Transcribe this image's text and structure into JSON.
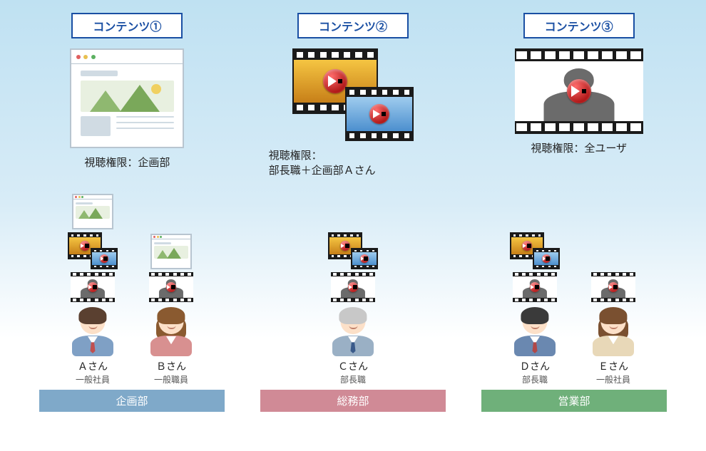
{
  "background_gradient": [
    "#bfe1f2",
    "#ffffff"
  ],
  "contents": [
    {
      "label": "コンテンツ①",
      "label_color": "#1a4fa3",
      "permission": "視聴権限：企画部",
      "icon": "browser"
    },
    {
      "label": "コンテンツ②",
      "label_color": "#1a4fa3",
      "permission": "視聴権限：\n部長職＋企画部Ａさん",
      "icon": "clips"
    },
    {
      "label": "コンテンツ③",
      "label_color": "#1a4fa3",
      "permission": "視聴権限：全ユーザ",
      "icon": "silhouette"
    }
  ],
  "browser_dots": [
    "#e06060",
    "#e8c050",
    "#5cb060"
  ],
  "clip_colors": {
    "gold_top": "#f5c542",
    "gold_bot": "#c77f18",
    "blue_top": "#9fccee",
    "blue_bot": "#4c8fce"
  },
  "play_button": {
    "grad_light": "#ff6b6b",
    "grad_dark": "#b01818",
    "triangle": "#ffffff"
  },
  "silhouette_color": "#6b6b6b",
  "departments": [
    {
      "name": "企画部",
      "bar_color": "#7fa9c9",
      "people": [
        {
          "name": "Ａさん",
          "role": "一般社員",
          "suit": "#7fa0c5",
          "hair": "#5a4030",
          "tie": "#c05050",
          "access": [
            "browser",
            "clips",
            "silhouette"
          ]
        },
        {
          "name": "Ｂさん",
          "role": "一般職員",
          "suit": "#d89090",
          "hair": "#8a5a30",
          "tie": null,
          "access": [
            "browser",
            "silhouette"
          ]
        }
      ]
    },
    {
      "name": "総務部",
      "bar_color": "#d08a96",
      "people": [
        {
          "name": "Ｃさん",
          "role": "部長職",
          "suit": "#9ab0c5",
          "hair": "#c8c8c8",
          "tie": "#3a5a8a",
          "access": [
            "clips",
            "silhouette"
          ]
        }
      ]
    },
    {
      "name": "営業部",
      "bar_color": "#6fb07a",
      "people": [
        {
          "name": "Ｄさん",
          "role": "部長職",
          "suit": "#6a88b0",
          "hair": "#3a3a3a",
          "tie": "#b04848",
          "access": [
            "clips",
            "silhouette"
          ]
        },
        {
          "name": "Ｅさん",
          "role": "一般社員",
          "suit": "#e8d8b8",
          "hair": "#7a5030",
          "tie": null,
          "access": [
            "silhouette"
          ]
        }
      ]
    }
  ]
}
